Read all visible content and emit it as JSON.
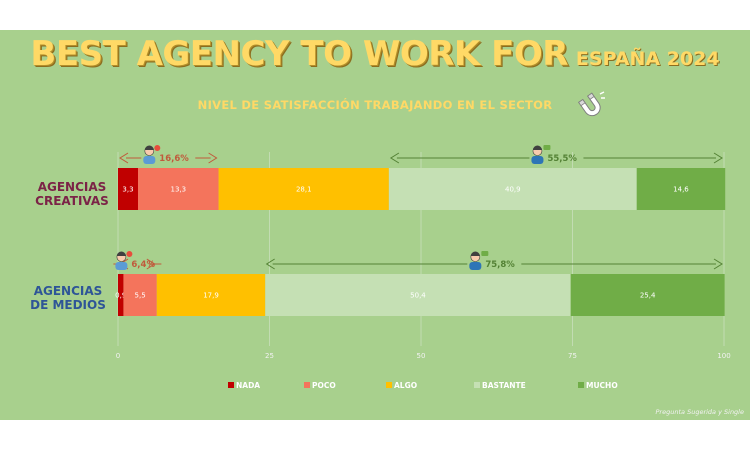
{
  "title": {
    "main": "BEST AGENCY TO WORK FOR",
    "sub": "ESPAÑA 2024"
  },
  "subtitle": "NIVEL DE SATISFACCIÓN TRABAJANDO EN EL SECTOR",
  "footnote": "Pregunta Sugerida y Single",
  "colors": {
    "nada": "#c00000",
    "poco": "#f4745c",
    "algo": "#ffc000",
    "bastante": "#c5e0b4",
    "mucho": "#70ad47"
  },
  "icons": [
    "magnet-icon",
    "unhappy-person-icon",
    "happy-person-icon"
  ],
  "chart_data": {
    "type": "bar",
    "orientation": "horizontal",
    "stacked": true,
    "categories": [
      "AGENCIAS CREATIVAS",
      "AGENCIAS DE MEDIOS"
    ],
    "category_lines": [
      [
        "AGENCIAS",
        "CREATIVAS"
      ],
      [
        "AGENCIAS",
        "DE MEDIOS"
      ]
    ],
    "category_colors": [
      "#7b2347",
      "#2e5597"
    ],
    "series": [
      {
        "name": "NADA",
        "color": "#c00000",
        "values": [
          3.3,
          0.9
        ],
        "labels": [
          "3,3",
          "0,9"
        ]
      },
      {
        "name": "POCO",
        "color": "#f4745c",
        "values": [
          13.3,
          5.5
        ],
        "labels": [
          "13,3",
          "5,5"
        ]
      },
      {
        "name": "ALGO",
        "color": "#ffc000",
        "values": [
          28.1,
          17.9
        ],
        "labels": [
          "28,1",
          "17,9"
        ]
      },
      {
        "name": "BASTANTE",
        "color": "#c5e0b4",
        "values": [
          40.9,
          50.4
        ],
        "labels": [
          "40,9",
          "50,4"
        ]
      },
      {
        "name": "MUCHO",
        "color": "#70ad47",
        "values": [
          14.6,
          25.4
        ],
        "labels": [
          "14,6",
          "25,4"
        ]
      }
    ],
    "xlim": [
      0,
      100
    ],
    "xticks": [
      0,
      25,
      50,
      75,
      100
    ],
    "grid": "vertical",
    "legend": "bottom",
    "annotations": [
      {
        "row": 0,
        "from": 0,
        "to": 16.6,
        "label": "16,6%",
        "kind": "negative",
        "color": "#c05a3c"
      },
      {
        "row": 0,
        "from": 44.7,
        "to": 100,
        "label": "55,5%",
        "kind": "positive",
        "color": "#548235"
      },
      {
        "row": 1,
        "from": 0,
        "to": 6.4,
        "label": "6,4%",
        "kind": "negative",
        "color": "#c05a3c"
      },
      {
        "row": 1,
        "from": 24.2,
        "to": 100,
        "label": "75,8%",
        "kind": "positive",
        "color": "#548235"
      }
    ]
  }
}
